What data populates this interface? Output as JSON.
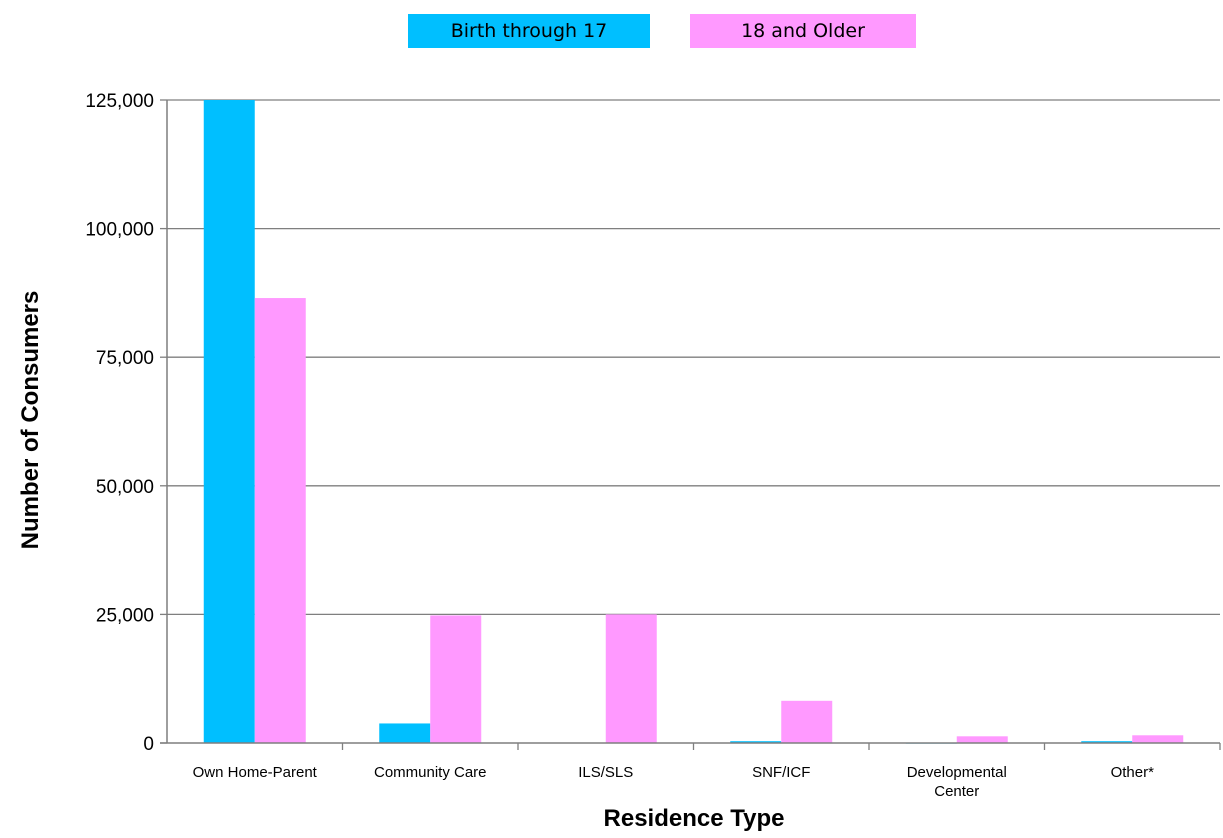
{
  "chart_data": {
    "type": "bar",
    "title": "",
    "xlabel": "Residence Type",
    "ylabel": "Number of Consumers",
    "ylim": [
      0,
      125000
    ],
    "yticks": [
      "0",
      "25,000",
      "50,000",
      "75,000",
      "100,000",
      "125,000"
    ],
    "ytick_values": [
      0,
      25000,
      50000,
      75000,
      100000,
      125000
    ],
    "categories": [
      [
        "Own Home-Parent"
      ],
      [
        "Community Care"
      ],
      [
        "ILS/SLS"
      ],
      [
        "SNF/ICF"
      ],
      [
        "Developmental",
        "Center"
      ],
      [
        "Other*"
      ]
    ],
    "series": [
      {
        "name": "Birth through 17",
        "color": "#00BFFF",
        "values": [
          125000,
          3800,
          80,
          350,
          30,
          350
        ]
      },
      {
        "name": "18 and Older",
        "color": "#FF99FF",
        "values": [
          86500,
          24800,
          25000,
          8200,
          1300,
          1500
        ]
      }
    ],
    "grid": true,
    "legend_position": "top-center"
  }
}
